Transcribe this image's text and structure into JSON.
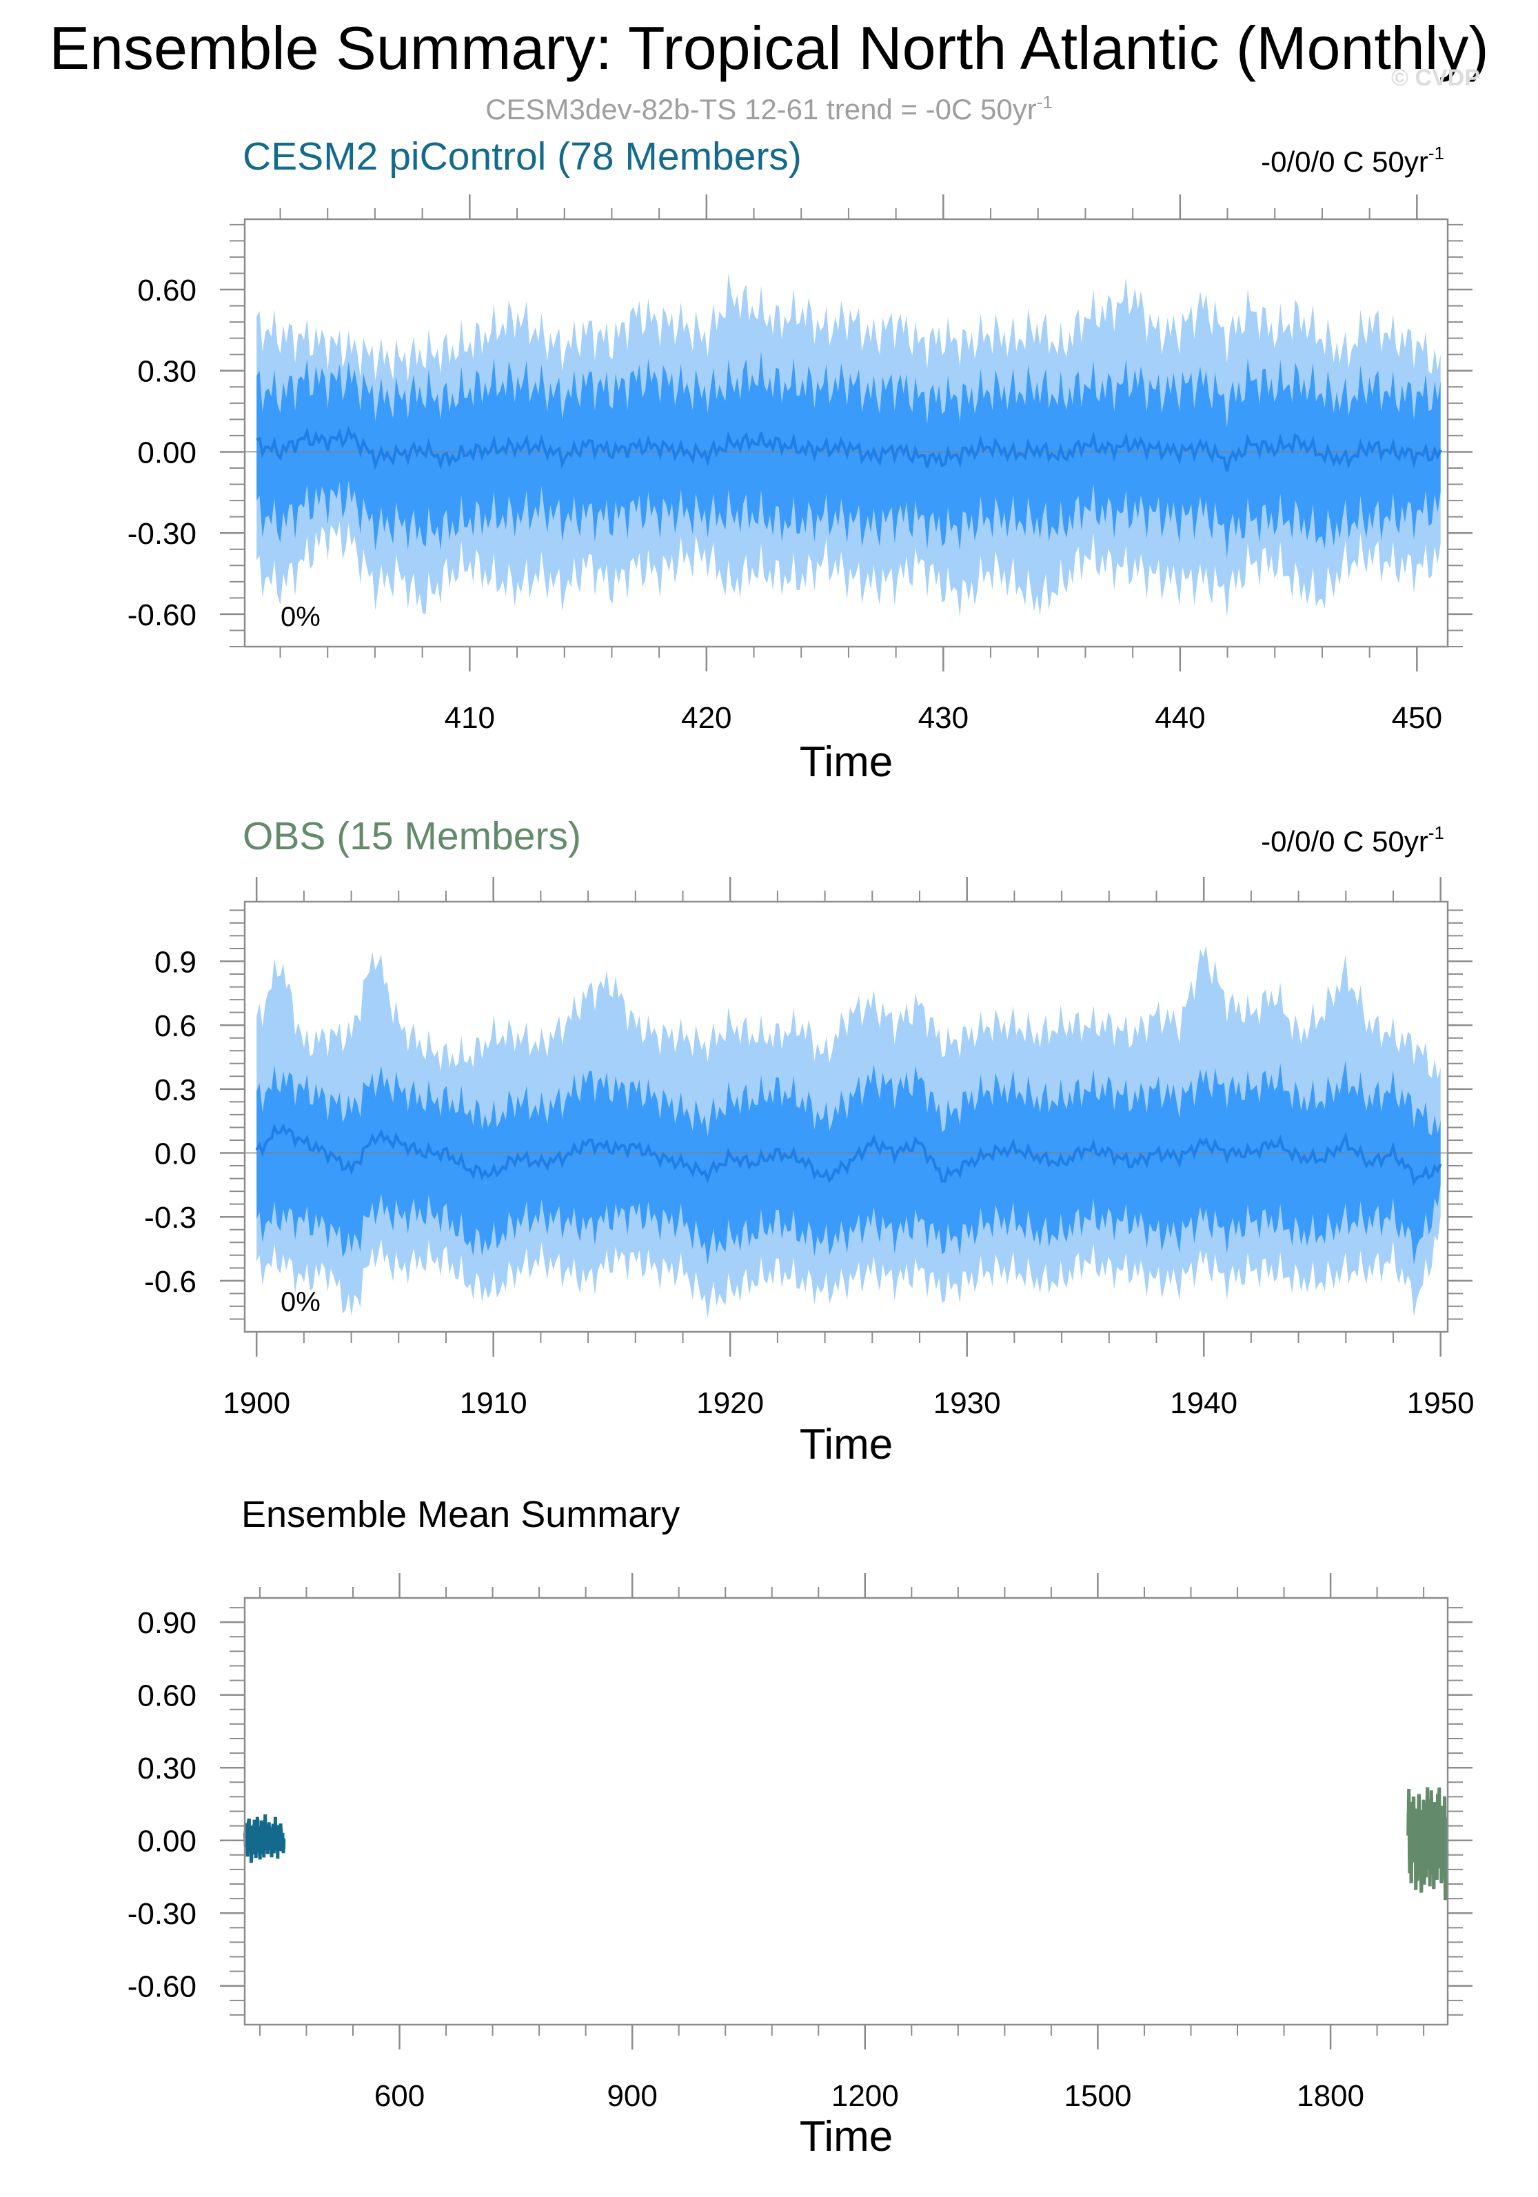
{
  "page": {
    "title": "Ensemble Summary: Tropical North Atlantic (Monthly)",
    "subtitle_main": "CESM3dev-82b-TS 12-61 trend = -0C 50yr",
    "subtitle_sup": "-1",
    "watermark": "© CVDP"
  },
  "colors": {
    "band_outer": "#a4d0fa",
    "band_inner": "#3a9bfa",
    "mean_line": "#1f7fe6",
    "cesm_title": "#146a8c",
    "obs_title": "#638a6a",
    "frame": "#8c8c8c"
  },
  "chart_data": [
    {
      "type": "area",
      "title": "CESM2 piControl (78 Members)",
      "trend_text": "-0/0/0 C 50yr",
      "trend_sup": "-1",
      "percent_label": "0%",
      "xlabel": "Time",
      "ylabel": "",
      "xlim": [
        400.5,
        451.3
      ],
      "ylim": [
        -0.72,
        0.86
      ],
      "xticks": [
        410,
        420,
        430,
        440,
        450
      ],
      "xtick_labels": [
        "410",
        "420",
        "430",
        "440",
        "450"
      ],
      "yticks": [
        0.6,
        0.3,
        0.0,
        -0.3,
        -0.6
      ],
      "ytick_labels": [
        "0.60",
        "0.30",
        "0.00",
        "-0.30",
        "-0.60"
      ],
      "x_start": 401,
      "x_end": 451,
      "series": [
        {
          "name": "",
          "values": [
            -0.44,
            -0.5,
            -0.4,
            -0.3,
            -0.33,
            -0.5,
            -0.45,
            -0.56,
            -0.46,
            -0.41,
            -0.47,
            -0.5,
            -0.45,
            -0.51,
            -0.41,
            -0.5,
            -0.42,
            -0.45,
            -0.39,
            -0.38,
            -0.5,
            -0.43,
            -0.46,
            -0.47,
            -0.4,
            -0.46,
            -0.49,
            -0.47,
            -0.41,
            -0.5,
            -0.53,
            -0.43,
            -0.48,
            -0.55,
            -0.49,
            -0.38,
            -0.42,
            -0.43,
            -0.46,
            -0.48,
            -0.47,
            -0.52,
            -0.41,
            -0.41,
            -0.49,
            -0.54,
            -0.41,
            -0.38,
            -0.42,
            -0.43,
            -0.39
          ]
        },
        {
          "name": "",
          "values": [
            -0.22,
            -0.27,
            -0.2,
            -0.17,
            -0.17,
            -0.28,
            -0.26,
            -0.3,
            -0.28,
            -0.25,
            -0.24,
            -0.24,
            -0.21,
            -0.25,
            -0.23,
            -0.25,
            -0.21,
            -0.23,
            -0.22,
            -0.24,
            -0.23,
            -0.23,
            -0.26,
            -0.26,
            -0.24,
            -0.25,
            -0.28,
            -0.24,
            -0.25,
            -0.29,
            -0.27,
            -0.24,
            -0.25,
            -0.26,
            -0.28,
            -0.2,
            -0.23,
            -0.22,
            -0.23,
            -0.25,
            -0.22,
            -0.3,
            -0.25,
            -0.25,
            -0.25,
            -0.31,
            -0.26,
            -0.25,
            -0.24,
            -0.23,
            -0.2
          ]
        },
        {
          "name": "",
          "values": [
            0.03,
            0.0,
            0.05,
            0.04,
            0.06,
            -0.02,
            -0.01,
            0.01,
            -0.03,
            0.0,
            0.01,
            0.02,
            0.02,
            -0.02,
            0.03,
            0.0,
            0.02,
            0.02,
            0.0,
            -0.01,
            0.03,
            0.04,
            0.03,
            0.01,
            0.01,
            0.02,
            -0.02,
            0.01,
            -0.02,
            -0.03,
            0.0,
            0.02,
            -0.01,
            0.01,
            -0.02,
            0.03,
            0.01,
            0.03,
            0.01,
            0.0,
            0.02,
            -0.04,
            0.03,
            0.01,
            0.04,
            -0.01,
            -0.03,
            0.02,
            0.0,
            -0.01,
            -0.01
          ]
        },
        {
          "name": "",
          "values": [
            0.24,
            0.21,
            0.27,
            0.26,
            0.27,
            0.2,
            0.2,
            0.22,
            0.19,
            0.23,
            0.25,
            0.26,
            0.24,
            0.2,
            0.26,
            0.22,
            0.27,
            0.27,
            0.24,
            0.22,
            0.25,
            0.28,
            0.25,
            0.25,
            0.24,
            0.26,
            0.21,
            0.25,
            0.2,
            0.2,
            0.2,
            0.23,
            0.22,
            0.24,
            0.2,
            0.25,
            0.23,
            0.27,
            0.22,
            0.24,
            0.26,
            0.18,
            0.27,
            0.24,
            0.26,
            0.22,
            0.19,
            0.25,
            0.21,
            0.21,
            0.21
          ]
        },
        {
          "name": "",
          "values": [
            0.46,
            0.43,
            0.42,
            0.4,
            0.38,
            0.35,
            0.34,
            0.36,
            0.37,
            0.4,
            0.45,
            0.5,
            0.43,
            0.38,
            0.45,
            0.4,
            0.51,
            0.48,
            0.47,
            0.42,
            0.58,
            0.53,
            0.48,
            0.52,
            0.45,
            0.5,
            0.42,
            0.48,
            0.4,
            0.42,
            0.4,
            0.44,
            0.41,
            0.46,
            0.38,
            0.5,
            0.52,
            0.58,
            0.44,
            0.45,
            0.55,
            0.42,
            0.53,
            0.44,
            0.5,
            0.42,
            0.36,
            0.48,
            0.42,
            0.4,
            0.31
          ]
        }
      ]
    },
    {
      "type": "area",
      "title": "OBS (15 Members)",
      "trend_text": "-0/0/0 C 50yr",
      "trend_sup": "-1",
      "percent_label": "0%",
      "xlabel": "Time",
      "ylabel": "",
      "xlim": [
        1899.5,
        1950.3
      ],
      "ylim": [
        -0.84,
        1.18
      ],
      "xticks": [
        1900,
        1910,
        1920,
        1930,
        1940,
        1950
      ],
      "xtick_labels": [
        "1900",
        "1910",
        "1920",
        "1930",
        "1940",
        "1950"
      ],
      "yticks": [
        0.9,
        0.6,
        0.3,
        0.0,
        -0.3,
        -0.6
      ],
      "ytick_labels": [
        "0.9",
        "0.6",
        "0.3",
        "0.0",
        "-0.3",
        "-0.6"
      ],
      "x_start": 1900,
      "x_end": 1950,
      "series": [
        {
          "name": "",
          "values": [
            -0.55,
            -0.5,
            -0.6,
            -0.55,
            -0.75,
            -0.45,
            -0.55,
            -0.5,
            -0.5,
            -0.62,
            -0.65,
            -0.55,
            -0.5,
            -0.55,
            -0.6,
            -0.5,
            -0.5,
            -0.55,
            -0.55,
            -0.7,
            -0.65,
            -0.6,
            -0.55,
            -0.6,
            -0.65,
            -0.6,
            -0.55,
            -0.6,
            -0.55,
            -0.65,
            -0.6,
            -0.55,
            -0.55,
            -0.6,
            -0.6,
            -0.5,
            -0.55,
            -0.55,
            -0.6,
            -0.6,
            -0.5,
            -0.6,
            -0.55,
            -0.55,
            -0.6,
            -0.6,
            -0.55,
            -0.55,
            -0.5,
            -0.7,
            -0.35
          ]
        },
        {
          "name": "",
          "values": [
            -0.35,
            -0.3,
            -0.32,
            -0.35,
            -0.45,
            -0.25,
            -0.3,
            -0.28,
            -0.3,
            -0.42,
            -0.42,
            -0.32,
            -0.3,
            -0.32,
            -0.35,
            -0.3,
            -0.28,
            -0.32,
            -0.32,
            -0.45,
            -0.4,
            -0.38,
            -0.32,
            -0.38,
            -0.42,
            -0.38,
            -0.32,
            -0.38,
            -0.32,
            -0.42,
            -0.38,
            -0.32,
            -0.32,
            -0.38,
            -0.38,
            -0.3,
            -0.32,
            -0.32,
            -0.38,
            -0.38,
            -0.3,
            -0.38,
            -0.32,
            -0.32,
            -0.38,
            -0.38,
            -0.32,
            -0.32,
            -0.3,
            -0.45,
            -0.2
          ]
        },
        {
          "name": "",
          "values": [
            0.0,
            0.12,
            0.05,
            0.0,
            -0.08,
            0.08,
            0.05,
            0.0,
            0.0,
            -0.08,
            -0.1,
            -0.02,
            -0.05,
            -0.02,
            0.05,
            0.02,
            0.03,
            -0.02,
            -0.05,
            -0.1,
            -0.02,
            -0.05,
            0.0,
            -0.03,
            -0.12,
            -0.05,
            0.05,
            0.0,
            0.05,
            -0.12,
            -0.05,
            0.0,
            0.02,
            -0.02,
            -0.05,
            0.02,
            0.0,
            -0.05,
            0.0,
            -0.02,
            0.05,
            0.0,
            0.0,
            0.05,
            -0.02,
            -0.03,
            0.05,
            -0.05,
            0.0,
            -0.12,
            -0.07
          ]
        },
        {
          "name": "",
          "values": [
            0.25,
            0.35,
            0.3,
            0.25,
            0.2,
            0.35,
            0.3,
            0.25,
            0.25,
            0.2,
            0.15,
            0.25,
            0.2,
            0.25,
            0.35,
            0.3,
            0.3,
            0.25,
            0.2,
            0.15,
            0.25,
            0.25,
            0.3,
            0.25,
            0.15,
            0.25,
            0.35,
            0.3,
            0.35,
            0.15,
            0.25,
            0.3,
            0.3,
            0.25,
            0.25,
            0.3,
            0.3,
            0.25,
            0.3,
            0.25,
            0.35,
            0.3,
            0.3,
            0.35,
            0.25,
            0.25,
            0.35,
            0.25,
            0.3,
            0.2,
            0.1
          ]
        },
        {
          "name": "",
          "values": [
            0.6,
            0.9,
            0.5,
            0.55,
            0.55,
            0.95,
            0.6,
            0.5,
            0.45,
            0.45,
            0.55,
            0.55,
            0.5,
            0.6,
            0.75,
            0.8,
            0.6,
            0.55,
            0.55,
            0.5,
            0.6,
            0.55,
            0.55,
            0.6,
            0.45,
            0.65,
            0.7,
            0.6,
            0.7,
            0.5,
            0.55,
            0.6,
            0.6,
            0.55,
            0.6,
            0.6,
            0.6,
            0.55,
            0.65,
            0.6,
            0.95,
            0.7,
            0.65,
            0.75,
            0.55,
            0.65,
            0.85,
            0.6,
            0.55,
            0.5,
            0.35
          ]
        }
      ]
    },
    {
      "type": "line",
      "title": "Ensemble Mean Summary",
      "xlabel": "Time",
      "ylabel": "",
      "xlim": [
        400.5,
        1951
      ],
      "ylim": [
        -0.76,
        1.0
      ],
      "xticks": [
        600,
        900,
        1200,
        1500,
        1800
      ],
      "xtick_labels": [
        "600",
        "900",
        "1200",
        "1500",
        "1800"
      ],
      "yticks": [
        0.9,
        0.6,
        0.3,
        0.0,
        -0.3,
        -0.6
      ],
      "ytick_labels": [
        "0.90",
        "0.60",
        "0.30",
        "0.00",
        "-0.30",
        "-0.60"
      ],
      "series": [
        {
          "name": "",
          "color": "#146a8c",
          "x_start": 401,
          "x_end": 451,
          "values": [
            0.03,
            -0.02,
            0.06,
            -0.05,
            0.04,
            0.08,
            -0.03,
            0.02,
            -0.08,
            0.05,
            0.0,
            -0.04,
            0.07,
            0.01,
            -0.06,
            0.03,
            0.09,
            -0.02,
            0.04,
            -0.07,
            0.02,
            0.06,
            -0.03,
            0.01,
            -0.05,
            0.05,
            0.08,
            -0.01,
            0.03,
            -0.04,
            0.02,
            0.06,
            -0.02,
            0.04,
            -0.06,
            0.01,
            0.05,
            -0.03,
            0.02,
            0.07,
            -0.01,
            0.03,
            -0.05,
            0.04,
            0.0,
            -0.02,
            0.06,
            -0.04,
            0.02,
            -0.03,
            -0.01
          ]
        },
        {
          "name": "",
          "color": "#638a6a",
          "x_start": 1900,
          "x_end": 1950,
          "values": [
            0.02,
            0.22,
            -0.15,
            0.18,
            -0.2,
            0.1,
            -0.1,
            0.2,
            -0.05,
            0.12,
            -0.22,
            0.15,
            -0.18,
            0.05,
            0.2,
            -0.12,
            0.1,
            -0.25,
            0.15,
            -0.08,
            0.18,
            -0.2,
            0.12,
            -0.15,
            0.08,
            0.22,
            -0.1,
            0.14,
            -0.2,
            0.05,
            0.2,
            -0.15,
            0.1,
            -0.22,
            0.16,
            -0.05,
            0.12,
            -0.18,
            0.2,
            -0.1,
            0.24,
            -0.12,
            0.08,
            -0.2,
            0.15,
            0.05,
            -0.15,
            0.18,
            -0.25,
            0.1,
            -0.07
          ]
        }
      ]
    }
  ]
}
